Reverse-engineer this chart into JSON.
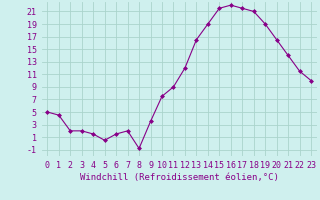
{
  "x": [
    0,
    1,
    2,
    3,
    4,
    5,
    6,
    7,
    8,
    9,
    10,
    11,
    12,
    13,
    14,
    15,
    16,
    17,
    18,
    19,
    20,
    21,
    22,
    23
  ],
  "y": [
    5.0,
    4.5,
    2.0,
    2.0,
    1.5,
    0.5,
    1.5,
    2.0,
    -0.8,
    3.5,
    7.5,
    9.0,
    12.0,
    16.5,
    19.0,
    21.5,
    22.0,
    21.5,
    21.0,
    19.0,
    16.5,
    14.0,
    11.5,
    10.0
  ],
  "line_color": "#880088",
  "marker": "D",
  "marker_size": 2,
  "bg_color": "#cff0ee",
  "grid_color": "#aad4cc",
  "xlabel": "Windchill (Refroidissement éolien,°C)",
  "xlabel_fontsize": 6.5,
  "ytick_labels": [
    "-1",
    "1",
    "3",
    "5",
    "7",
    "9",
    "11",
    "13",
    "15",
    "17",
    "19",
    "21"
  ],
  "ytick_values": [
    -1,
    1,
    3,
    5,
    7,
    9,
    11,
    13,
    15,
    17,
    19,
    21
  ],
  "ylim": [
    -2.0,
    22.5
  ],
  "xlim": [
    -0.5,
    23.5
  ],
  "xtick_labels": [
    "0",
    "1",
    "2",
    "3",
    "4",
    "5",
    "6",
    "7",
    "8",
    "9",
    "10",
    "11",
    "12",
    "13",
    "14",
    "15",
    "16",
    "17",
    "18",
    "19",
    "20",
    "21",
    "22",
    "23"
  ],
  "tick_fontsize": 6.0
}
